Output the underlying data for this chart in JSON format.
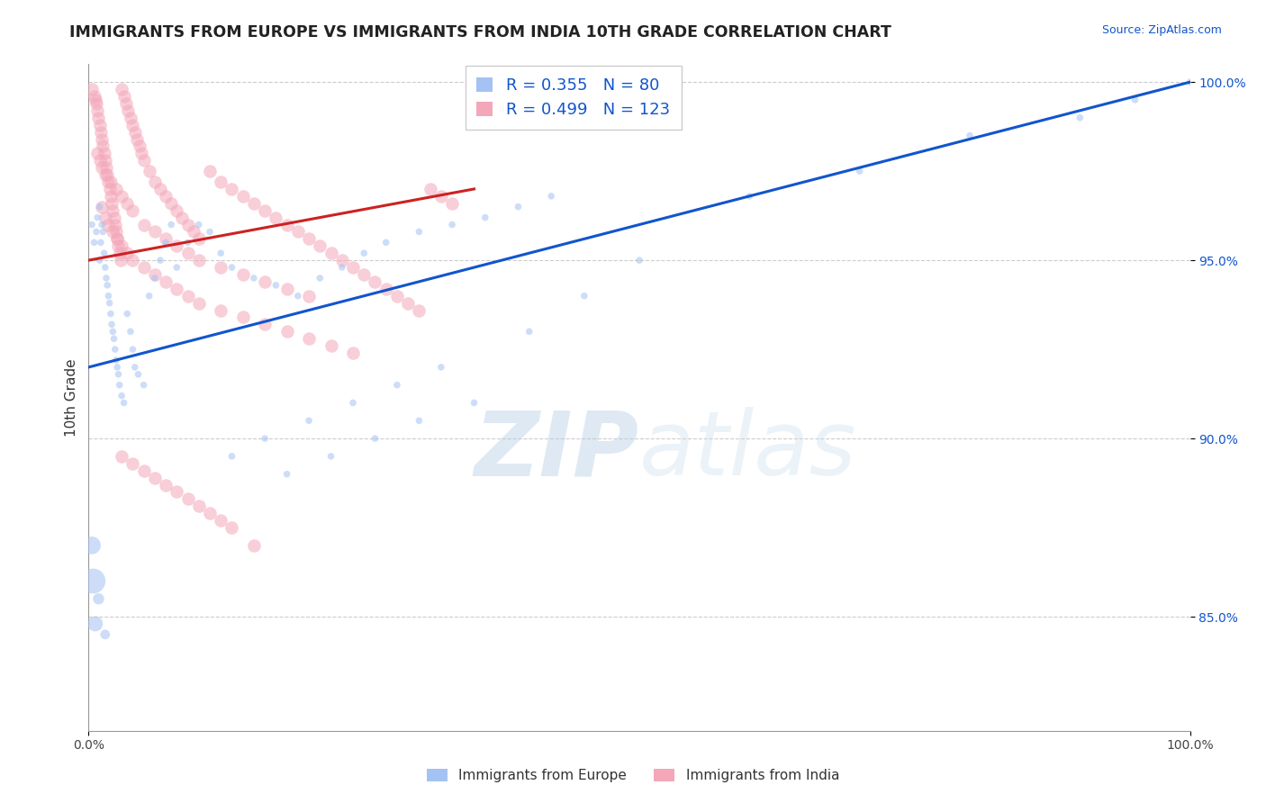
{
  "title": "IMMIGRANTS FROM EUROPE VS IMMIGRANTS FROM INDIA 10TH GRADE CORRELATION CHART",
  "source_text": "Source: ZipAtlas.com",
  "ylabel": "10th Grade",
  "xlim": [
    0.0,
    1.0
  ],
  "ylim": [
    0.818,
    1.005
  ],
  "blue_label": "Immigrants from Europe",
  "pink_label": "Immigrants from India",
  "blue_R": 0.355,
  "blue_N": 80,
  "pink_R": 0.499,
  "pink_N": 123,
  "blue_color": "#a4c2f4",
  "pink_color": "#f4a7b9",
  "blue_line_color": "#1155cc",
  "pink_line_color": "#cc2222",
  "ytick_positions": [
    0.85,
    0.9,
    0.95,
    1.0
  ],
  "ytick_labels": [
    "85.0%",
    "90.0%",
    "95.0%",
    "100.0%"
  ],
  "xtick_positions": [
    0.0,
    1.0
  ],
  "xtick_labels": [
    "0.0%",
    "100.0%"
  ],
  "watermark_zip": "ZIP",
  "watermark_atlas": "atlas",
  "background_color": "#ffffff",
  "grid_color": "#cccccc",
  "title_fontsize": 12.5,
  "axis_label_fontsize": 11,
  "tick_fontsize": 10,
  "legend_fontsize": 13,
  "blue_line_x0": 0.0,
  "blue_line_y0": 0.92,
  "blue_line_x1": 1.0,
  "blue_line_y1": 1.0,
  "pink_line_x0": 0.0,
  "pink_line_y0": 0.95,
  "pink_line_x1": 0.35,
  "pink_line_y1": 0.97,
  "blue_scatter_x": [
    0.003,
    0.005,
    0.007,
    0.008,
    0.01,
    0.01,
    0.011,
    0.012,
    0.013,
    0.014,
    0.015,
    0.016,
    0.017,
    0.018,
    0.019,
    0.02,
    0.021,
    0.022,
    0.023,
    0.024,
    0.025,
    0.026,
    0.027,
    0.028,
    0.03,
    0.032,
    0.035,
    0.038,
    0.04,
    0.042,
    0.045,
    0.05,
    0.055,
    0.06,
    0.065,
    0.07,
    0.075,
    0.08,
    0.09,
    0.1,
    0.11,
    0.12,
    0.13,
    0.15,
    0.17,
    0.19,
    0.21,
    0.23,
    0.25,
    0.27,
    0.3,
    0.33,
    0.36,
    0.39,
    0.42,
    0.13,
    0.16,
    0.2,
    0.24,
    0.28,
    0.32,
    0.18,
    0.22,
    0.26,
    0.3,
    0.35,
    0.4,
    0.45,
    0.5,
    0.6,
    0.7,
    0.8,
    0.9,
    0.95,
    1.0,
    0.003,
    0.004,
    0.006,
    0.009,
    0.015
  ],
  "blue_scatter_y": [
    0.96,
    0.955,
    0.958,
    0.962,
    0.965,
    0.95,
    0.955,
    0.96,
    0.958,
    0.952,
    0.948,
    0.945,
    0.943,
    0.94,
    0.938,
    0.935,
    0.932,
    0.93,
    0.928,
    0.925,
    0.922,
    0.92,
    0.918,
    0.915,
    0.912,
    0.91,
    0.935,
    0.93,
    0.925,
    0.92,
    0.918,
    0.915,
    0.94,
    0.945,
    0.95,
    0.955,
    0.96,
    0.948,
    0.955,
    0.96,
    0.958,
    0.952,
    0.948,
    0.945,
    0.943,
    0.94,
    0.945,
    0.948,
    0.952,
    0.955,
    0.958,
    0.96,
    0.962,
    0.965,
    0.968,
    0.895,
    0.9,
    0.905,
    0.91,
    0.915,
    0.92,
    0.89,
    0.895,
    0.9,
    0.905,
    0.91,
    0.93,
    0.94,
    0.95,
    0.968,
    0.975,
    0.985,
    0.99,
    0.995,
    1.0,
    0.87,
    0.86,
    0.848,
    0.855,
    0.845
  ],
  "blue_scatter_size": [
    30,
    30,
    30,
    30,
    30,
    30,
    30,
    30,
    30,
    30,
    30,
    30,
    30,
    30,
    30,
    30,
    30,
    30,
    30,
    30,
    30,
    30,
    30,
    30,
    30,
    30,
    30,
    30,
    30,
    30,
    30,
    30,
    30,
    30,
    30,
    30,
    30,
    30,
    30,
    30,
    30,
    30,
    30,
    30,
    30,
    30,
    30,
    30,
    30,
    30,
    30,
    30,
    30,
    30,
    30,
    30,
    30,
    30,
    30,
    30,
    30,
    30,
    30,
    30,
    30,
    30,
    30,
    30,
    30,
    30,
    30,
    30,
    30,
    30,
    30,
    200,
    400,
    150,
    80,
    60
  ],
  "pink_scatter_x": [
    0.003,
    0.005,
    0.006,
    0.007,
    0.008,
    0.009,
    0.01,
    0.011,
    0.012,
    0.013,
    0.014,
    0.015,
    0.016,
    0.017,
    0.018,
    0.019,
    0.02,
    0.021,
    0.022,
    0.023,
    0.024,
    0.025,
    0.026,
    0.027,
    0.028,
    0.029,
    0.03,
    0.032,
    0.034,
    0.036,
    0.038,
    0.04,
    0.042,
    0.044,
    0.046,
    0.048,
    0.05,
    0.055,
    0.06,
    0.065,
    0.07,
    0.075,
    0.08,
    0.085,
    0.09,
    0.095,
    0.1,
    0.11,
    0.12,
    0.13,
    0.14,
    0.15,
    0.16,
    0.17,
    0.18,
    0.19,
    0.2,
    0.21,
    0.22,
    0.23,
    0.24,
    0.25,
    0.26,
    0.27,
    0.28,
    0.29,
    0.3,
    0.31,
    0.32,
    0.33,
    0.008,
    0.01,
    0.012,
    0.015,
    0.02,
    0.025,
    0.03,
    0.035,
    0.04,
    0.05,
    0.06,
    0.07,
    0.08,
    0.09,
    0.1,
    0.12,
    0.14,
    0.16,
    0.18,
    0.2,
    0.012,
    0.015,
    0.018,
    0.022,
    0.026,
    0.03,
    0.035,
    0.04,
    0.05,
    0.06,
    0.07,
    0.08,
    0.09,
    0.1,
    0.12,
    0.14,
    0.16,
    0.18,
    0.2,
    0.22,
    0.24,
    0.03,
    0.04,
    0.05,
    0.06,
    0.07,
    0.08,
    0.09,
    0.1,
    0.11,
    0.12,
    0.13,
    0.15
  ],
  "pink_scatter_y": [
    0.998,
    0.996,
    0.995,
    0.994,
    0.992,
    0.99,
    0.988,
    0.986,
    0.984,
    0.982,
    0.98,
    0.978,
    0.976,
    0.974,
    0.972,
    0.97,
    0.968,
    0.966,
    0.964,
    0.962,
    0.96,
    0.958,
    0.956,
    0.954,
    0.952,
    0.95,
    0.998,
    0.996,
    0.994,
    0.992,
    0.99,
    0.988,
    0.986,
    0.984,
    0.982,
    0.98,
    0.978,
    0.975,
    0.972,
    0.97,
    0.968,
    0.966,
    0.964,
    0.962,
    0.96,
    0.958,
    0.956,
    0.975,
    0.972,
    0.97,
    0.968,
    0.966,
    0.964,
    0.962,
    0.96,
    0.958,
    0.956,
    0.954,
    0.952,
    0.95,
    0.948,
    0.946,
    0.944,
    0.942,
    0.94,
    0.938,
    0.936,
    0.97,
    0.968,
    0.966,
    0.98,
    0.978,
    0.976,
    0.974,
    0.972,
    0.97,
    0.968,
    0.966,
    0.964,
    0.96,
    0.958,
    0.956,
    0.954,
    0.952,
    0.95,
    0.948,
    0.946,
    0.944,
    0.942,
    0.94,
    0.965,
    0.962,
    0.96,
    0.958,
    0.956,
    0.954,
    0.952,
    0.95,
    0.948,
    0.946,
    0.944,
    0.942,
    0.94,
    0.938,
    0.936,
    0.934,
    0.932,
    0.93,
    0.928,
    0.926,
    0.924,
    0.895,
    0.893,
    0.891,
    0.889,
    0.887,
    0.885,
    0.883,
    0.881,
    0.879,
    0.877,
    0.875,
    0.87
  ]
}
